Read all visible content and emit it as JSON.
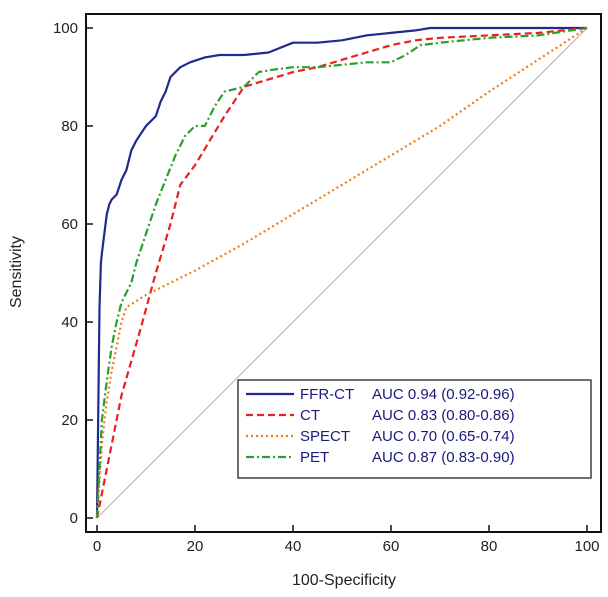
{
  "chart_data": {
    "type": "line",
    "title": "",
    "xlabel": "100-Specificity",
    "ylabel": "Sensitivity",
    "xlim": [
      0,
      100
    ],
    "ylim": [
      0,
      100
    ],
    "xticks": [
      0,
      20,
      40,
      60,
      80,
      100
    ],
    "yticks": [
      0,
      20,
      40,
      60,
      80,
      100
    ],
    "grid": false,
    "legend_position": "bottom-right",
    "reference_line": {
      "x": [
        0,
        100
      ],
      "y": [
        0,
        100
      ],
      "color": "#b0b0b0"
    },
    "series": [
      {
        "name": "FFR-CT",
        "auc_label": "AUC 0.94 (0.92-0.96)",
        "color": "#1f2a8c",
        "dash": "solid",
        "x": [
          0,
          0.5,
          0.8,
          1,
          1.5,
          2,
          2.5,
          3,
          4,
          5,
          6,
          7,
          8,
          10,
          12,
          13,
          14,
          15,
          17,
          19,
          22,
          25,
          30,
          35,
          40,
          45,
          50,
          55,
          60,
          65,
          68,
          75,
          85,
          100
        ],
        "y": [
          0,
          43,
          52,
          54,
          58,
          62,
          64,
          65,
          66,
          69,
          71,
          75,
          77,
          80,
          82,
          85,
          87,
          90,
          92,
          93,
          94,
          94.5,
          94.5,
          95,
          97,
          97,
          97.5,
          98.5,
          99,
          99.5,
          100,
          100,
          100,
          100
        ]
      },
      {
        "name": "CT",
        "auc_label": "AUC 0.83 (0.80-0.86)",
        "color": "#e8201f",
        "dash": "dashed",
        "x": [
          0,
          2,
          5,
          9,
          12,
          15,
          17,
          20,
          23,
          26,
          30,
          35,
          40,
          45,
          50,
          55,
          60,
          65,
          70,
          80,
          90,
          100
        ],
        "y": [
          0,
          10,
          25,
          39,
          50,
          60,
          68,
          72,
          77,
          82,
          88,
          89.5,
          91,
          92,
          93.5,
          95,
          96.5,
          97.5,
          98,
          98.5,
          99,
          100
        ]
      },
      {
        "name": "SPECT",
        "auc_label": "AUC 0.70 (0.65-0.74)",
        "color": "#f07d12",
        "dash": "dotted",
        "x": [
          0,
          1,
          2,
          3,
          4,
          5,
          6,
          10,
          20,
          30,
          40,
          50,
          60,
          70,
          80,
          90,
          100
        ],
        "y": [
          0,
          15,
          24,
          30,
          35,
          40,
          43,
          45.5,
          50.5,
          56,
          62,
          68,
          74,
          80,
          87,
          93.5,
          100
        ]
      },
      {
        "name": "PET",
        "auc_label": "AUC 0.87 (0.83-0.90)",
        "color": "#2aa02a",
        "dash": "dashdot",
        "x": [
          0,
          1,
          2,
          3,
          4,
          5,
          6,
          7,
          8,
          10,
          12,
          14,
          16,
          18,
          20,
          22,
          24,
          26,
          30,
          33,
          36,
          40,
          45,
          50,
          55,
          60,
          63,
          66,
          70,
          80,
          90,
          100
        ],
        "y": [
          0,
          20,
          28,
          35,
          40,
          44,
          46,
          48,
          52,
          58,
          64,
          69,
          74,
          78,
          80,
          80,
          84,
          87,
          88,
          91,
          91.5,
          92,
          92,
          92.5,
          93,
          93,
          94.5,
          96.5,
          97,
          98,
          98.5,
          100
        ]
      }
    ]
  }
}
